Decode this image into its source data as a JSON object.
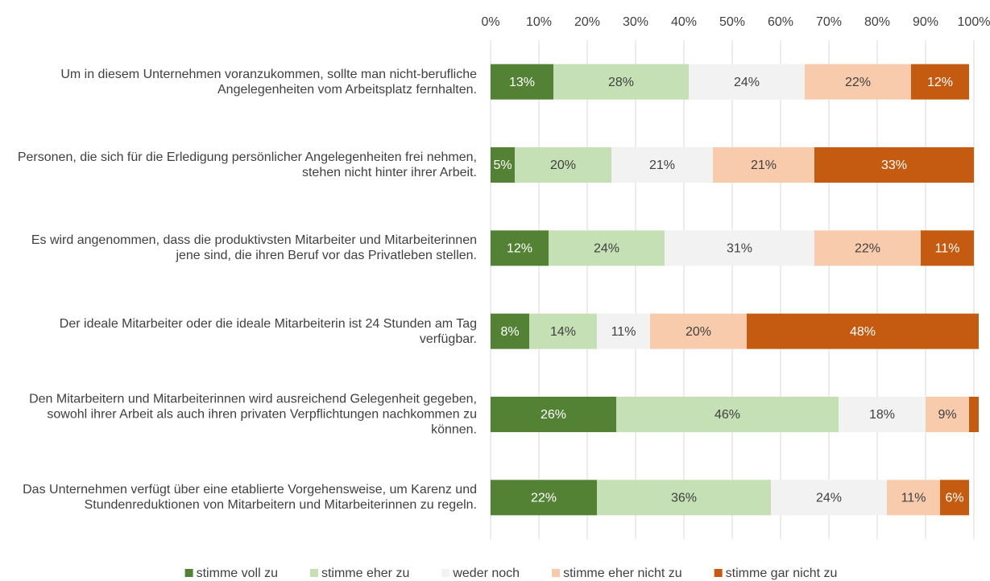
{
  "chart_data": {
    "type": "stacked-barh",
    "categories": [
      "Um in diesem Unternehmen voranzukommen, sollte man nicht-berufliche Angelegenheiten vom Arbeitsplatz fernhalten.",
      "Personen, die sich für die Erledigung persönlicher Angelegenheiten frei nehmen, stehen nicht hinter ihrer Arbeit.",
      "Es wird angenommen, dass die produktivsten Mitarbeiter und Mitarbeiterinnen jene sind, die ihren Beruf vor das Privatleben stellen.",
      "Der ideale Mitarbeiter oder die ideale Mitarbeiterin ist 24 Stunden am Tag verfügbar.",
      "Den Mitarbeitern und Mitarbeiterinnen wird ausreichend Gelegenheit gegeben, sowohl ihrer Arbeit als auch ihren privaten Verpflichtungen nachkommen zu können.",
      "Das Unternehmen verfügt über eine etablierte Vorgehensweise, um Karenz und Stundenreduktionen von Mitarbeitern und Mitarbeiterinnen zu regeln."
    ],
    "series": [
      {
        "name": "stimme voll zu",
        "color": "#548235",
        "values": [
          13,
          5,
          12,
          8,
          26,
          22
        ],
        "value_labels": [
          "13%",
          "5%",
          "12%",
          "8%",
          "26%",
          "22%"
        ]
      },
      {
        "name": "stimme eher zu",
        "color": "#c5e0b4",
        "values": [
          28,
          20,
          24,
          14,
          46,
          36
        ],
        "value_labels": [
          "28%",
          "20%",
          "24%",
          "14%",
          "46%",
          "36%"
        ]
      },
      {
        "name": "weder noch",
        "color": "#f2f2f2",
        "values": [
          24,
          21,
          31,
          11,
          18,
          24
        ],
        "value_labels": [
          "24%",
          "21%",
          "31%",
          "11%",
          "18%",
          "24%"
        ]
      },
      {
        "name": "stimme eher nicht zu",
        "color": "#f8cbad",
        "values": [
          22,
          21,
          22,
          20,
          9,
          11
        ],
        "value_labels": [
          "22%",
          "21%",
          "22%",
          "20%",
          "9%",
          "11%"
        ]
      },
      {
        "name": "stimme gar nicht zu",
        "color": "#c55a11",
        "values": [
          12,
          33,
          11,
          48,
          2,
          6
        ],
        "value_labels": [
          "12%",
          "33%",
          "11%",
          "48%",
          null,
          "6%"
        ]
      }
    ],
    "xlim": [
      0,
      100
    ],
    "xticks": [
      {
        "value": 0,
        "label": "0%"
      },
      {
        "value": 10,
        "label": "10%"
      },
      {
        "value": 20,
        "label": "20%"
      },
      {
        "value": 30,
        "label": "30%"
      },
      {
        "value": 40,
        "label": "40%"
      },
      {
        "value": 50,
        "label": "50%"
      },
      {
        "value": 60,
        "label": "60%"
      },
      {
        "value": 70,
        "label": "70%"
      },
      {
        "value": 80,
        "label": "80%"
      },
      {
        "value": 90,
        "label": "90%"
      },
      {
        "value": 100,
        "label": "100%"
      }
    ],
    "grid": true,
    "legend": "bottom"
  }
}
